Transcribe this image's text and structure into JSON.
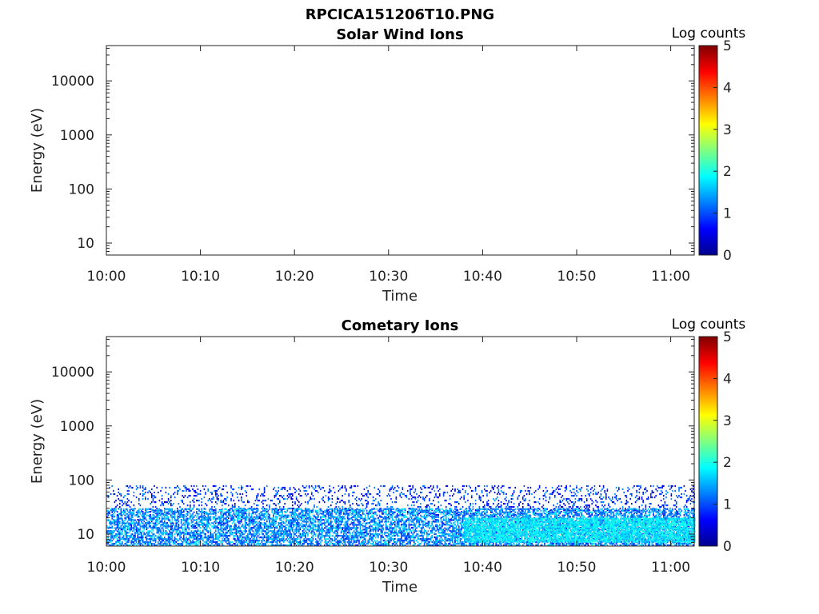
{
  "figure": {
    "title": "RPCICA151206T10.PNG"
  },
  "chart_data": [
    {
      "type": "heatmap",
      "title": "Solar Wind Ions",
      "xlabel": "Time",
      "ylabel": "Energy (eV)",
      "x_ticks": [
        "10:00",
        "10:10",
        "10:20",
        "10:30",
        "10:40",
        "10:50",
        "11:00"
      ],
      "x_tick_minutes": [
        0,
        10,
        20,
        30,
        40,
        50,
        60
      ],
      "xlim_minutes": [
        0,
        62.5
      ],
      "y_scale": "log",
      "ylim": [
        6,
        45000
      ],
      "y_ticks": [
        10,
        100,
        1000,
        10000
      ],
      "y_tick_labels": [
        "10",
        "100",
        "1000",
        "10000"
      ],
      "colorbar": {
        "label": "Log counts",
        "range": [
          0,
          5
        ],
        "ticks": [
          "0",
          "1",
          "2",
          "3",
          "4",
          "5"
        ],
        "colormap": "jet"
      },
      "data": "empty"
    },
    {
      "type": "heatmap",
      "title": "Cometary Ions",
      "xlabel": "Time",
      "ylabel": "Energy (eV)",
      "x_ticks": [
        "10:00",
        "10:10",
        "10:20",
        "10:30",
        "10:40",
        "10:50",
        "11:00"
      ],
      "x_tick_minutes": [
        0,
        10,
        20,
        30,
        40,
        50,
        60
      ],
      "xlim_minutes": [
        0,
        62.5
      ],
      "y_scale": "log",
      "ylim": [
        6,
        45000
      ],
      "y_ticks": [
        10,
        100,
        1000,
        10000
      ],
      "y_tick_labels": [
        "10",
        "100",
        "1000",
        "10000"
      ],
      "colorbar": {
        "label": "Log counts",
        "range": [
          0,
          5
        ],
        "ticks": [
          "0",
          "1",
          "2",
          "3",
          "4",
          "5"
        ],
        "colormap": "jet"
      },
      "regions": [
        {
          "t_start": 0,
          "t_end": 62.5,
          "e_min": 6,
          "e_max": 80,
          "log_counts": [
            0.3,
            1.4
          ],
          "note": "sparse"
        },
        {
          "t_start": 0,
          "t_end": 62.5,
          "e_min": 6,
          "e_max": 30,
          "log_counts": [
            0.8,
            1.9
          ]
        },
        {
          "t_start": 38,
          "t_end": 62.5,
          "e_min": 7,
          "e_max": 20,
          "log_counts": [
            1.5,
            2.1
          ]
        }
      ]
    }
  ]
}
